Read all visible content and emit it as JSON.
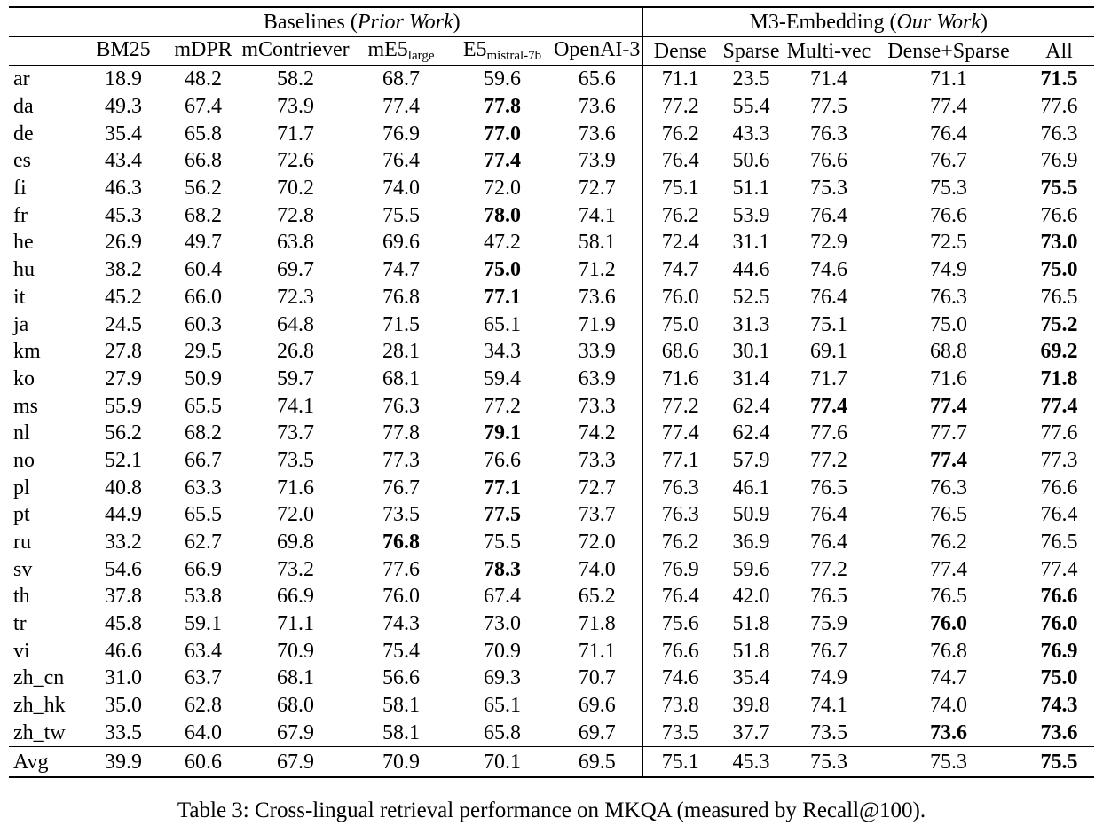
{
  "table": {
    "group_headers": {
      "baselines": {
        "prefix": "Baselines (",
        "italic": "Prior Work",
        "suffix": ")"
      },
      "m3": {
        "prefix": "M3-Embedding (",
        "italic": "Our Work",
        "suffix": ")"
      }
    },
    "columns": {
      "left": [
        {
          "text": "BM25",
          "sub": ""
        },
        {
          "text": "mDPR",
          "sub": ""
        },
        {
          "text": "mContriever",
          "sub": ""
        },
        {
          "text": "mE5",
          "sub": "large"
        },
        {
          "text": "E5",
          "sub": "mistral-7b"
        },
        {
          "text": "OpenAI-3",
          "sub": ""
        }
      ],
      "right": [
        "Dense",
        "Sparse",
        "Multi-vec",
        "Dense+Sparse",
        "All"
      ]
    },
    "rows": [
      {
        "lang": "ar",
        "values": [
          "18.9",
          "48.2",
          "58.2",
          "68.7",
          "59.6",
          "65.6",
          "71.1",
          "23.5",
          "71.4",
          "71.1",
          "71.5"
        ],
        "bold": [
          10
        ],
        "avg": false
      },
      {
        "lang": "da",
        "values": [
          "49.3",
          "67.4",
          "73.9",
          "77.4",
          "77.8",
          "73.6",
          "77.2",
          "55.4",
          "77.5",
          "77.4",
          "77.6"
        ],
        "bold": [
          4
        ],
        "avg": false
      },
      {
        "lang": "de",
        "values": [
          "35.4",
          "65.8",
          "71.7",
          "76.9",
          "77.0",
          "73.6",
          "76.2",
          "43.3",
          "76.3",
          "76.4",
          "76.3"
        ],
        "bold": [
          4
        ],
        "avg": false
      },
      {
        "lang": "es",
        "values": [
          "43.4",
          "66.8",
          "72.6",
          "76.4",
          "77.4",
          "73.9",
          "76.4",
          "50.6",
          "76.6",
          "76.7",
          "76.9"
        ],
        "bold": [
          4
        ],
        "avg": false
      },
      {
        "lang": "fi",
        "values": [
          "46.3",
          "56.2",
          "70.2",
          "74.0",
          "72.0",
          "72.7",
          "75.1",
          "51.1",
          "75.3",
          "75.3",
          "75.5"
        ],
        "bold": [
          10
        ],
        "avg": false
      },
      {
        "lang": "fr",
        "values": [
          "45.3",
          "68.2",
          "72.8",
          "75.5",
          "78.0",
          "74.1",
          "76.2",
          "53.9",
          "76.4",
          "76.6",
          "76.6"
        ],
        "bold": [
          4
        ],
        "avg": false
      },
      {
        "lang": "he",
        "values": [
          "26.9",
          "49.7",
          "63.8",
          "69.6",
          "47.2",
          "58.1",
          "72.4",
          "31.1",
          "72.9",
          "72.5",
          "73.0"
        ],
        "bold": [
          10
        ],
        "avg": false
      },
      {
        "lang": "hu",
        "values": [
          "38.2",
          "60.4",
          "69.7",
          "74.7",
          "75.0",
          "71.2",
          "74.7",
          "44.6",
          "74.6",
          "74.9",
          "75.0"
        ],
        "bold": [
          4,
          10
        ],
        "avg": false
      },
      {
        "lang": "it",
        "values": [
          "45.2",
          "66.0",
          "72.3",
          "76.8",
          "77.1",
          "73.6",
          "76.0",
          "52.5",
          "76.4",
          "76.3",
          "76.5"
        ],
        "bold": [
          4
        ],
        "avg": false
      },
      {
        "lang": "ja",
        "values": [
          "24.5",
          "60.3",
          "64.8",
          "71.5",
          "65.1",
          "71.9",
          "75.0",
          "31.3",
          "75.1",
          "75.0",
          "75.2"
        ],
        "bold": [
          10
        ],
        "avg": false
      },
      {
        "lang": "km",
        "values": [
          "27.8",
          "29.5",
          "26.8",
          "28.1",
          "34.3",
          "33.9",
          "68.6",
          "30.1",
          "69.1",
          "68.8",
          "69.2"
        ],
        "bold": [
          10
        ],
        "avg": false
      },
      {
        "lang": "ko",
        "values": [
          "27.9",
          "50.9",
          "59.7",
          "68.1",
          "59.4",
          "63.9",
          "71.6",
          "31.4",
          "71.7",
          "71.6",
          "71.8"
        ],
        "bold": [
          10
        ],
        "avg": false
      },
      {
        "lang": "ms",
        "values": [
          "55.9",
          "65.5",
          "74.1",
          "76.3",
          "77.2",
          "73.3",
          "77.2",
          "62.4",
          "77.4",
          "77.4",
          "77.4"
        ],
        "bold": [
          8,
          9,
          10
        ],
        "avg": false
      },
      {
        "lang": "nl",
        "values": [
          "56.2",
          "68.2",
          "73.7",
          "77.8",
          "79.1",
          "74.2",
          "77.4",
          "62.4",
          "77.6",
          "77.7",
          "77.6"
        ],
        "bold": [
          4
        ],
        "avg": false
      },
      {
        "lang": "no",
        "values": [
          "52.1",
          "66.7",
          "73.5",
          "77.3",
          "76.6",
          "73.3",
          "77.1",
          "57.9",
          "77.2",
          "77.4",
          "77.3"
        ],
        "bold": [
          9
        ],
        "avg": false
      },
      {
        "lang": "pl",
        "values": [
          "40.8",
          "63.3",
          "71.6",
          "76.7",
          "77.1",
          "72.7",
          "76.3",
          "46.1",
          "76.5",
          "76.3",
          "76.6"
        ],
        "bold": [
          4
        ],
        "avg": false
      },
      {
        "lang": "pt",
        "values": [
          "44.9",
          "65.5",
          "72.0",
          "73.5",
          "77.5",
          "73.7",
          "76.3",
          "50.9",
          "76.4",
          "76.5",
          "76.4"
        ],
        "bold": [
          4
        ],
        "avg": false
      },
      {
        "lang": "ru",
        "values": [
          "33.2",
          "62.7",
          "69.8",
          "76.8",
          "75.5",
          "72.0",
          "76.2",
          "36.9",
          "76.4",
          "76.2",
          "76.5"
        ],
        "bold": [
          3
        ],
        "avg": false
      },
      {
        "lang": "sv",
        "values": [
          "54.6",
          "66.9",
          "73.2",
          "77.6",
          "78.3",
          "74.0",
          "76.9",
          "59.6",
          "77.2",
          "77.4",
          "77.4"
        ],
        "bold": [
          4
        ],
        "avg": false
      },
      {
        "lang": "th",
        "values": [
          "37.8",
          "53.8",
          "66.9",
          "76.0",
          "67.4",
          "65.2",
          "76.4",
          "42.0",
          "76.5",
          "76.5",
          "76.6"
        ],
        "bold": [
          10
        ],
        "avg": false
      },
      {
        "lang": "tr",
        "values": [
          "45.8",
          "59.1",
          "71.1",
          "74.3",
          "73.0",
          "71.8",
          "75.6",
          "51.8",
          "75.9",
          "76.0",
          "76.0"
        ],
        "bold": [
          9,
          10
        ],
        "avg": false
      },
      {
        "lang": "vi",
        "values": [
          "46.6",
          "63.4",
          "70.9",
          "75.4",
          "70.9",
          "71.1",
          "76.6",
          "51.8",
          "76.7",
          "76.8",
          "76.9"
        ],
        "bold": [
          10
        ],
        "avg": false
      },
      {
        "lang": "zh_cn",
        "values": [
          "31.0",
          "63.7",
          "68.1",
          "56.6",
          "69.3",
          "70.7",
          "74.6",
          "35.4",
          "74.9",
          "74.7",
          "75.0"
        ],
        "bold": [
          10
        ],
        "avg": false
      },
      {
        "lang": "zh_hk",
        "values": [
          "35.0",
          "62.8",
          "68.0",
          "58.1",
          "65.1",
          "69.6",
          "73.8",
          "39.8",
          "74.1",
          "74.0",
          "74.3"
        ],
        "bold": [
          10
        ],
        "avg": false
      },
      {
        "lang": "zh_tw",
        "values": [
          "33.5",
          "64.0",
          "67.9",
          "58.1",
          "65.8",
          "69.7",
          "73.5",
          "37.7",
          "73.5",
          "73.6",
          "73.6"
        ],
        "bold": [
          9,
          10
        ],
        "avg": false
      },
      {
        "lang": "Avg",
        "values": [
          "39.9",
          "60.6",
          "67.9",
          "70.9",
          "70.1",
          "69.5",
          "75.1",
          "45.3",
          "75.3",
          "75.3",
          "75.5"
        ],
        "bold": [
          10
        ],
        "avg": true
      }
    ]
  },
  "caption": "Table 3: Cross-lingual retrieval performance on MKQA (measured by Recall@100)."
}
